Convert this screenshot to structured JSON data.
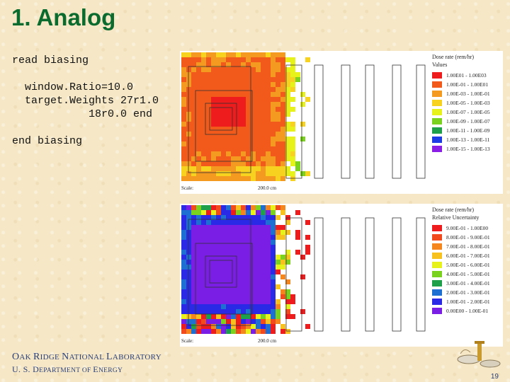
{
  "slide": {
    "title": "1. Analog",
    "code_lines": [
      "read biasing",
      "",
      "  window.Ratio=10.0",
      "  target.Weights 27r1.0",
      "            18r0.0 end",
      "",
      "end biasing"
    ],
    "page_number": "19"
  },
  "footer": {
    "line1_initial_1": "O",
    "line1_rest_1": "AK ",
    "line1_initial_2": "R",
    "line1_rest_2": "IDGE ",
    "line1_initial_3": "N",
    "line1_rest_3": "ATIONAL ",
    "line1_initial_4": "L",
    "line1_rest_4": "ABORATORY",
    "line2_initial_1": "U. S. D",
    "line2_rest_1": "EPARTMENT OF ",
    "line2_initial_2": "E",
    "line2_rest_2": "NERGY"
  },
  "colors": {
    "title": "#0b6b2e",
    "footer": "#2a3f7a",
    "background": "#f6e8c6"
  },
  "figures": [
    {
      "id": "dose-rate",
      "legend_title": "Dose rate (rem/hr)",
      "legend_subtitle": "Values",
      "scale_label": "Scale:",
      "scale_value": "200.0 cm",
      "legend": [
        {
          "label": "1.00E01 - 1.00E03",
          "color": "#ee1c1c"
        },
        {
          "label": "1.00E-01 - 1.00E01",
          "color": "#f25a1c"
        },
        {
          "label": "1.00E-03 - 1.00E-01",
          "color": "#f59a20"
        },
        {
          "label": "1.00E-05 - 1.00E-03",
          "color": "#f7d21e"
        },
        {
          "label": "1.00E-07 - 1.00E-05",
          "color": "#e6f21a"
        },
        {
          "label": "1.00E-09 - 1.00E-07",
          "color": "#7bd21e"
        },
        {
          "label": "1.00E-11 - 1.00E-09",
          "color": "#1e9f4a"
        },
        {
          "label": "1.00E-13 - 1.00E-11",
          "color": "#1e3ce6"
        },
        {
          "label": "1.00E-15 - 1.00E-13",
          "color": "#8a1ee6"
        }
      ]
    },
    {
      "id": "relative-uncertainty",
      "legend_title": "Dose rate (rem/hr)",
      "legend_subtitle": "Relative Uncertainty",
      "scale_label": "Scale:",
      "scale_value": "200.0 cm",
      "legend": [
        {
          "label": "9.00E-01 - 1.00E00",
          "color": "#ee1c1c"
        },
        {
          "label": "8.00E-01 - 9.00E-01",
          "color": "#f24a1c"
        },
        {
          "label": "7.00E-01 - 8.00E-01",
          "color": "#f5861e"
        },
        {
          "label": "6.00E-01 - 7.00E-01",
          "color": "#f7c21e"
        },
        {
          "label": "5.00E-01 - 6.00E-01",
          "color": "#e6f21a"
        },
        {
          "label": "4.00E-01 - 5.00E-01",
          "color": "#7bd21e"
        },
        {
          "label": "3.00E-01 - 4.00E-01",
          "color": "#1e9f4a"
        },
        {
          "label": "2.00E-01 - 3.00E-01",
          "color": "#1e6fd2"
        },
        {
          "label": "1.00E-01 - 2.00E-01",
          "color": "#2a2ae6"
        },
        {
          "label": "0.00E00 - 1.00E-01",
          "color": "#7a1ee6"
        }
      ]
    }
  ]
}
